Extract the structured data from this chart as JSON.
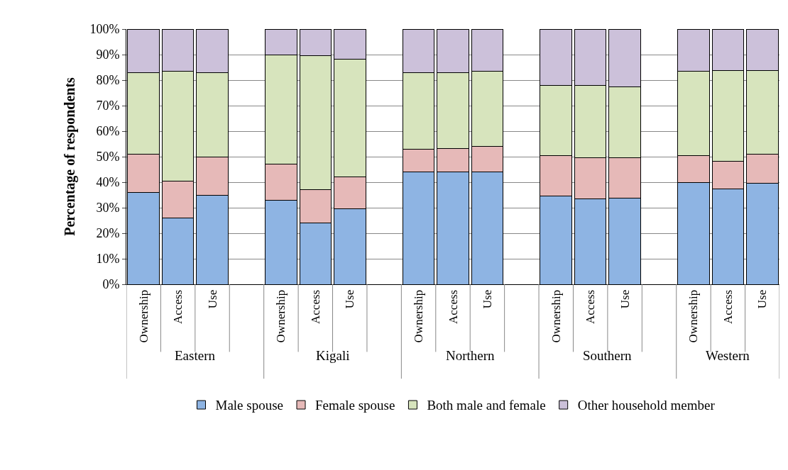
{
  "chart_data": {
    "type": "bar",
    "stacked": true,
    "ylabel": "Percentage of respondents",
    "categories": [
      "Ownership",
      "Access",
      "Use",
      null,
      "Ownership",
      "Access",
      "Use",
      null,
      "Ownership",
      "Access",
      "Use",
      null,
      "Ownership",
      "Access",
      "Use",
      null,
      "Ownership",
      "Access",
      "Use"
    ],
    "annotations": [
      "Eastern",
      "Kigali",
      "Northern",
      "Southern",
      "Western"
    ],
    "series": [
      {
        "name": "Male spouse",
        "color": "#8eb4e3",
        "values": [
          36,
          26,
          35,
          null,
          33,
          24,
          29.5,
          null,
          44,
          44,
          44,
          null,
          34.5,
          33.5,
          33.8,
          null,
          39.8,
          37.5,
          39.5
        ]
      },
      {
        "name": "Female spouse",
        "color": "#e6b9b8",
        "values": [
          15,
          14.5,
          15,
          null,
          14,
          13,
          12.5,
          null,
          9,
          9.3,
          10,
          null,
          16,
          16.2,
          15.9,
          null,
          10.7,
          10.7,
          11.5
        ]
      },
      {
        "name": "Both male and female",
        "color": "#d7e4bd",
        "values": [
          32,
          43,
          33,
          null,
          43,
          52.5,
          46.3,
          null,
          30,
          29.7,
          29.5,
          null,
          27.3,
          28.1,
          27.8,
          null,
          33,
          35.6,
          32.8
        ]
      },
      {
        "name": "Other household member",
        "color": "#ccc1da",
        "values": [
          17,
          16.5,
          17,
          null,
          10,
          10.5,
          11.7,
          null,
          17,
          17,
          16.5,
          null,
          22.2,
          22.2,
          22.5,
          null,
          16.5,
          16.2,
          16.2
        ]
      }
    ],
    "ylim": [
      0,
      100
    ],
    "yticks": [
      {
        "value": 0,
        "label": "0%"
      },
      {
        "value": 10,
        "label": "10%"
      },
      {
        "value": 20,
        "label": "20%"
      },
      {
        "value": 30,
        "label": "30%"
      },
      {
        "value": 40,
        "label": "40%"
      },
      {
        "value": 50,
        "label": "50%"
      },
      {
        "value": 60,
        "label": "60%"
      },
      {
        "value": 70,
        "label": "70%"
      },
      {
        "value": 80,
        "label": "80%"
      },
      {
        "value": 90,
        "label": "90%"
      },
      {
        "value": 100,
        "label": "100%"
      }
    ],
    "grid": "y",
    "legend": "bottom"
  }
}
